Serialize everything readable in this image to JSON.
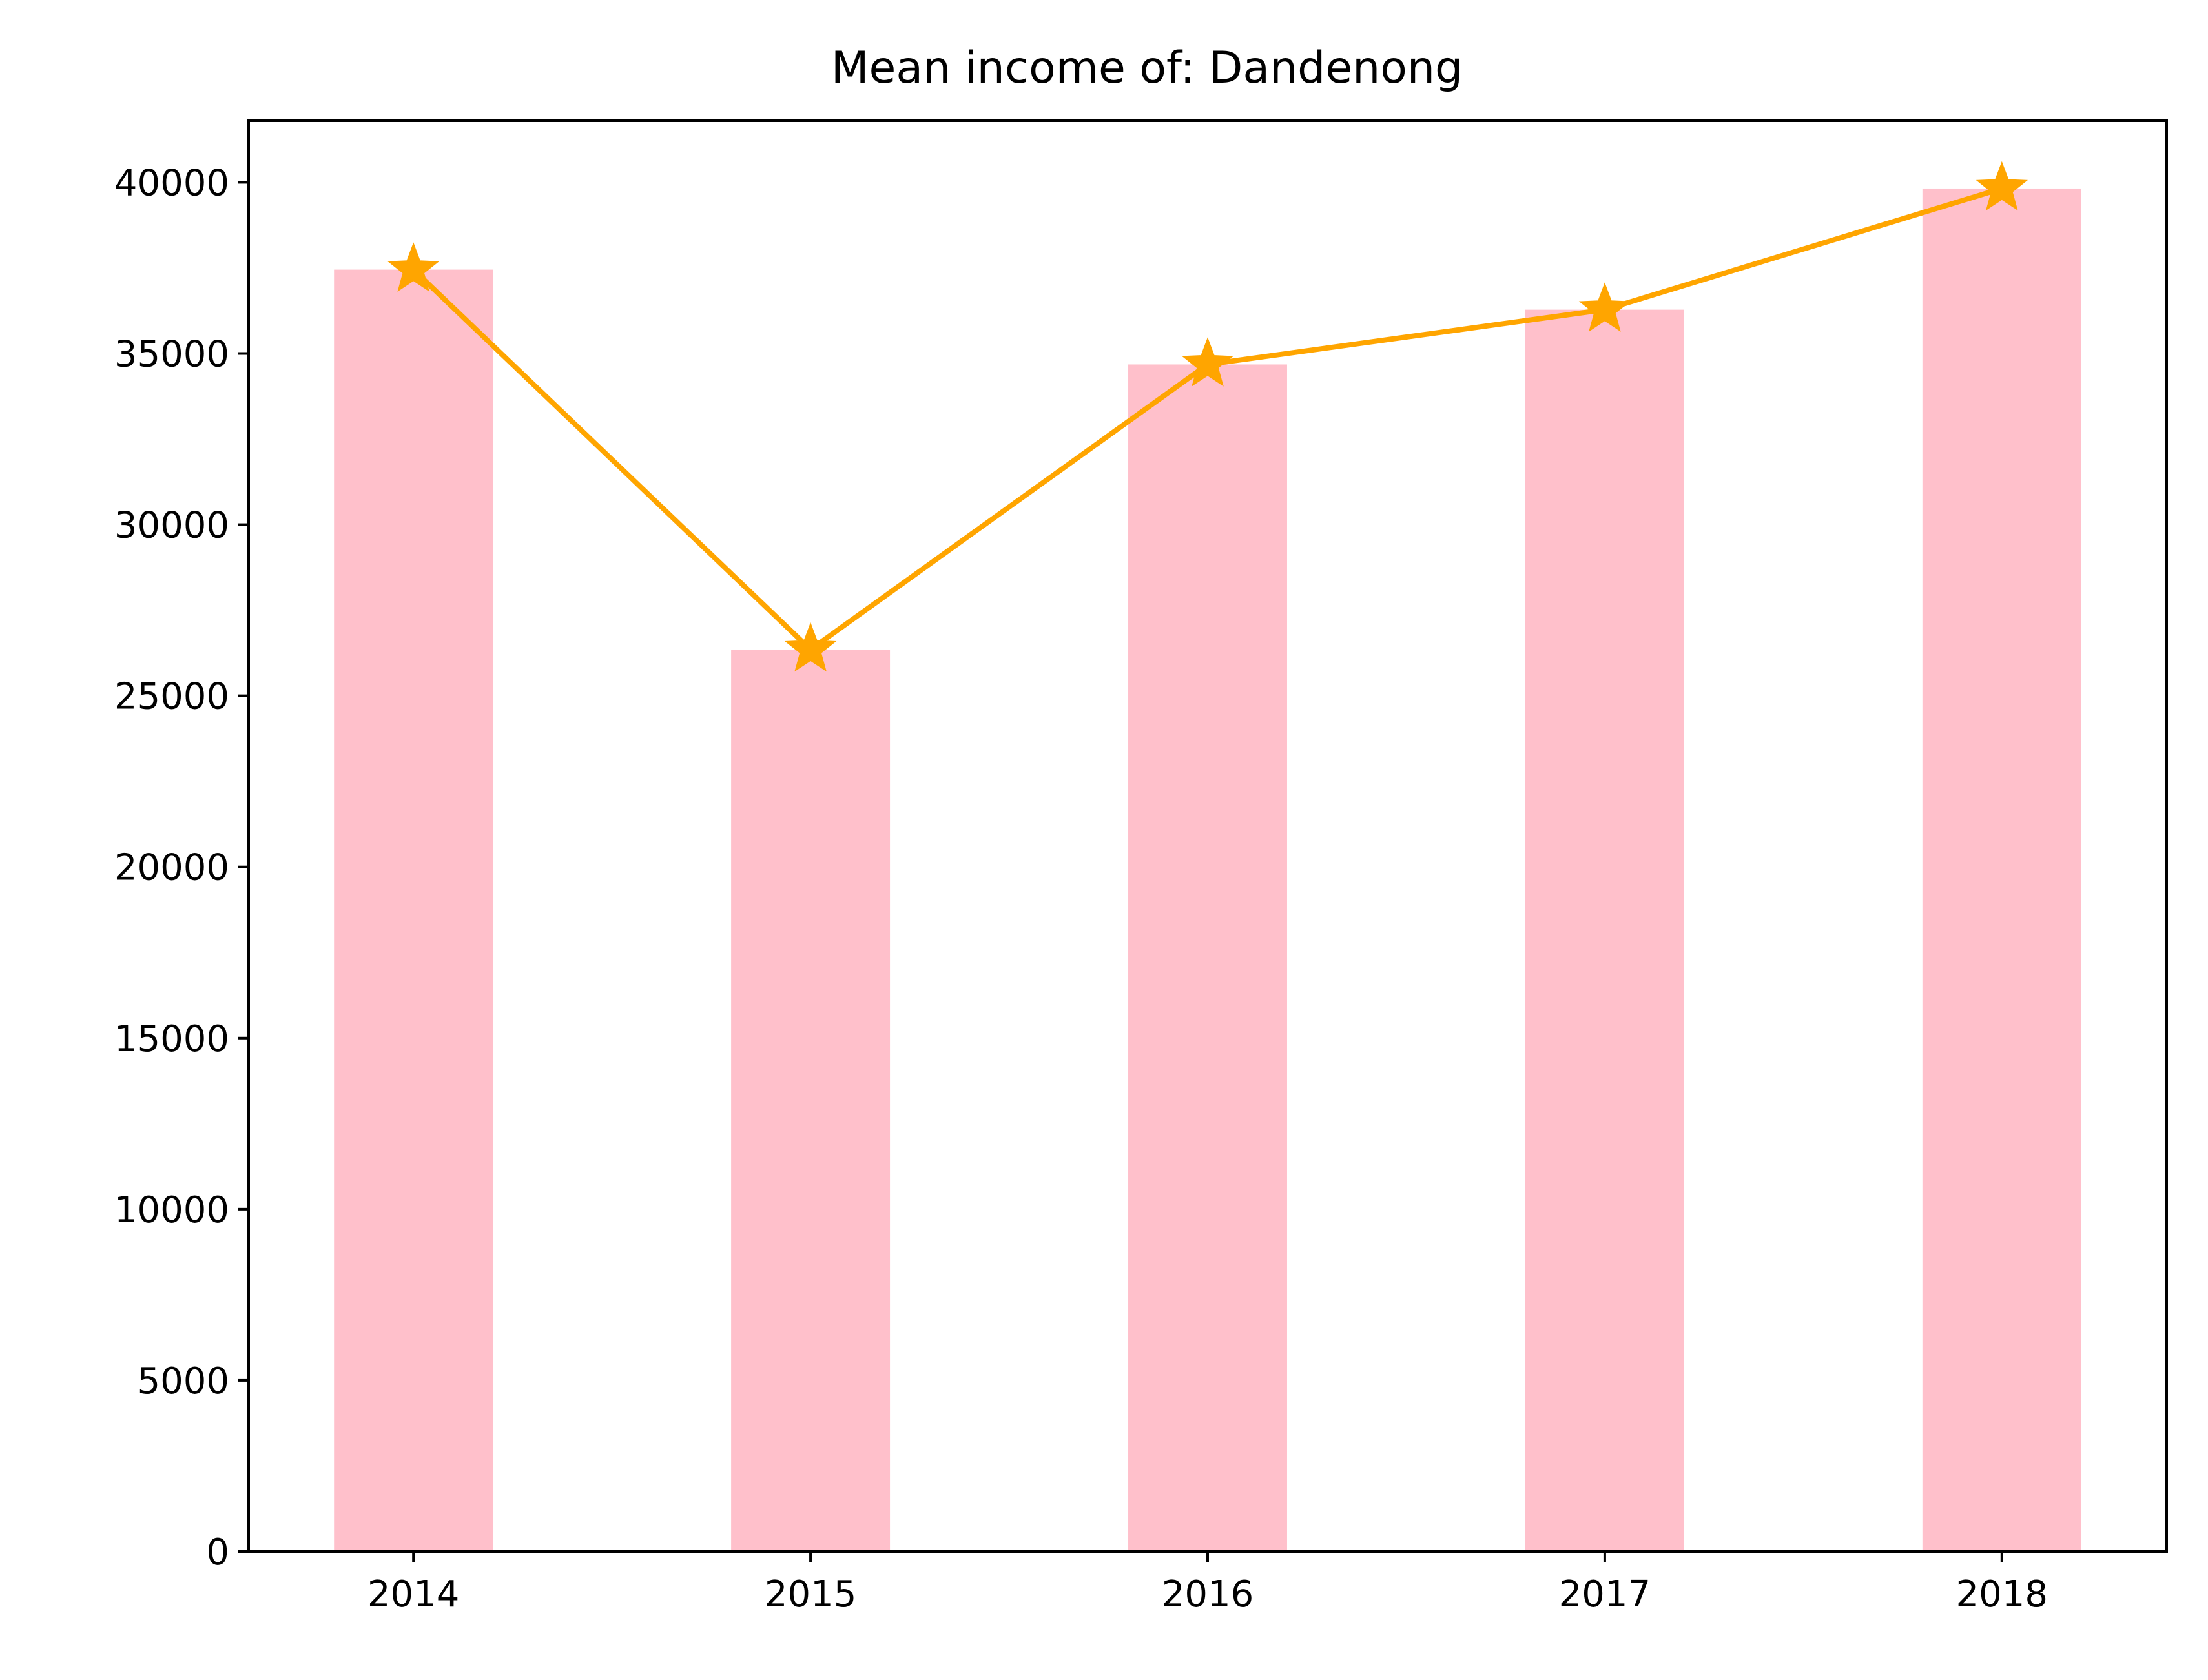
{
  "chart_data": {
    "type": "bar",
    "title": "Mean income of: Dandenong",
    "xlabel": "",
    "ylabel": "",
    "categories": [
      "2014",
      "2015",
      "2016",
      "2017",
      "2018"
    ],
    "values": [
      37450,
      26350,
      34680,
      36280,
      39820
    ],
    "ylim": [
      0,
      41800
    ],
    "yticks": [
      0,
      5000,
      10000,
      15000,
      20000,
      25000,
      30000,
      35000,
      40000
    ],
    "grid": false,
    "overlay_line": {
      "type": "line",
      "marker": "star",
      "values": [
        37450,
        26350,
        34680,
        36280,
        39820
      ]
    },
    "colors": {
      "bar": "#ffc0cb",
      "line": "#ffa500",
      "axis": "#000000"
    }
  }
}
